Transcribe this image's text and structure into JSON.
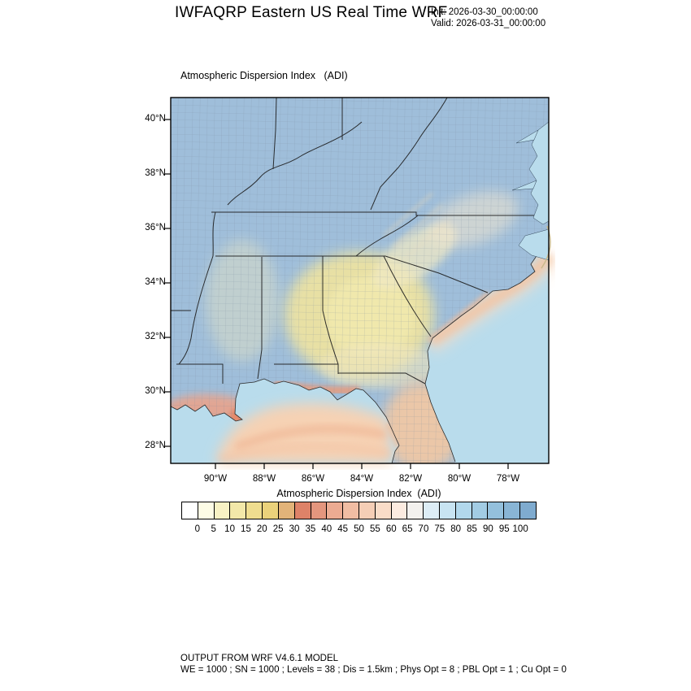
{
  "header": {
    "title": "IWFAQRP Eastern US Real Time WRF",
    "init_label": "Init: 2026-03-30_00:00:00",
    "valid_label": "Valid: 2026-03-31_00:00:00"
  },
  "map": {
    "field_title": "Atmospheric Dispersion Index   (ADI)",
    "lat_ticks": [
      "40°N",
      "38°N",
      "36°N",
      "34°N",
      "32°N",
      "30°N",
      "28°N"
    ],
    "lon_ticks": [
      "90°W",
      "88°W",
      "86°W",
      "84°W",
      "82°W",
      "80°W",
      "78°W"
    ]
  },
  "colorbar": {
    "title": "Atmospheric Dispersion Index  (ADI)",
    "tick_labels": [
      "0",
      "5",
      "10",
      "15",
      "20",
      "25",
      "30",
      "35",
      "40",
      "45",
      "50",
      "55",
      "60",
      "65",
      "70",
      "75",
      "80",
      "85",
      "90",
      "95",
      "100"
    ],
    "cell_colors": [
      "#ffffff",
      "#fdfce5",
      "#f8f2c4",
      "#f3e8a9",
      "#efdd8f",
      "#ebd27b",
      "#e2b379",
      "#de8268",
      "#e4967e",
      "#ecab92",
      "#f1bda3",
      "#f5ceb6",
      "#f9dcc8",
      "#fcebe0",
      "#f3f1ee",
      "#ddedf6",
      "#c8e4f2",
      "#b2d8ec",
      "#a2cce4",
      "#94c0dc",
      "#89b5d5",
      "#7fabcf"
    ]
  },
  "footer": {
    "line1": "OUTPUT FROM WRF V4.6.1 MODEL",
    "line2": "WE = 1000 ; SN = 1000 ; Levels = 38 ; Dis = 1.5km ; Phys Opt = 8 ; PBL Opt = 1 ; Cu Opt = 0"
  },
  "palette": {
    "ocean": "#b9dcec",
    "land_high_adi_blue": "#9fbeda",
    "central_low_adi_yellow": "#ece2a2",
    "coastal_peach": "#f5cfae",
    "salmon_coast": "#eb9a78"
  }
}
